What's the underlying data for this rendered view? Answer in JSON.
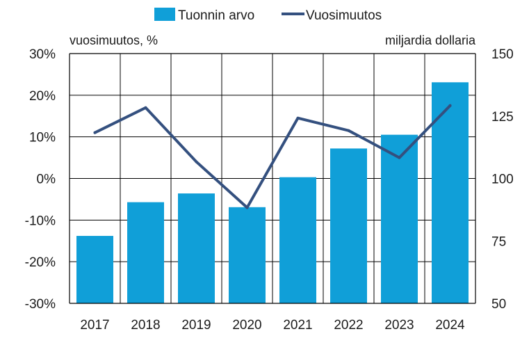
{
  "chart_data": {
    "type": "bar",
    "categories": [
      "2017",
      "2018",
      "2019",
      "2020",
      "2021",
      "2022",
      "2023",
      "2024"
    ],
    "series": [
      {
        "name": "Tuonnin arvo",
        "type": "bar",
        "axis": "right",
        "color": "#109fd8",
        "values": [
          77,
          90.5,
          94,
          88.5,
          100.5,
          112,
          117.5,
          138.5
        ]
      },
      {
        "name": "Vuosimuutos",
        "type": "line",
        "axis": "left",
        "color": "#34507f",
        "values": [
          11,
          17,
          4,
          -7,
          14.5,
          11.5,
          5,
          17.5
        ]
      }
    ],
    "left_axis": {
      "label": "vuosimuutos, %",
      "ylim": [
        -30,
        30
      ],
      "ticks": [
        30,
        20,
        10,
        0,
        -10,
        -20,
        -30
      ],
      "tick_labels": [
        "30%",
        "20%",
        "10%",
        "0%",
        "-10%",
        "-20%",
        "-30%"
      ]
    },
    "right_axis": {
      "label": "miljardia dollaria",
      "ylim": [
        50,
        150
      ],
      "ticks": [
        150,
        125,
        100,
        75,
        50
      ],
      "tick_labels": [
        "150",
        "125",
        "100",
        "75",
        "50"
      ]
    },
    "legend_position": "top",
    "grid": true
  }
}
